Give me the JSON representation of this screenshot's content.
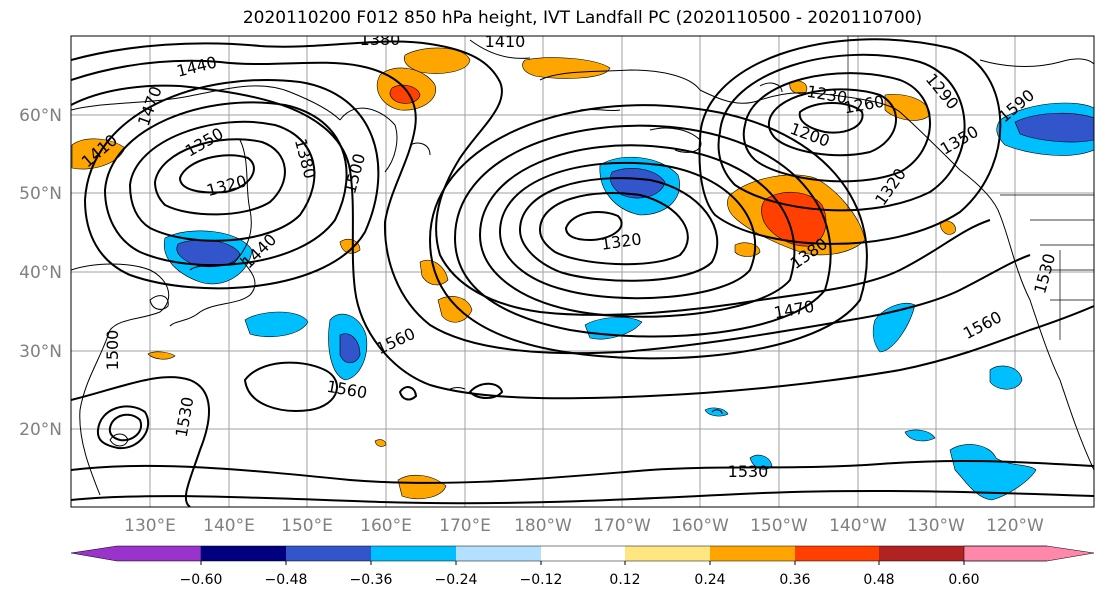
{
  "title": "2020110200 F012 850 hPa height, IVT Landfall PC (2020110500 - 2020110700)",
  "lat_labels": [
    "60°N",
    "50°N",
    "40°N",
    "30°N",
    "20°N"
  ],
  "lon_labels": [
    "130°E",
    "140°E",
    "150°E",
    "160°E",
    "170°E",
    "180°W",
    "170°W",
    "160°W",
    "150°W",
    "140°W",
    "130°W",
    "120°W"
  ],
  "contour_labels": [
    "1380",
    "1410",
    "1440",
    "1470",
    "1350",
    "1410",
    "1320",
    "1380",
    "1500",
    "1440",
    "1500",
    "1530",
    "1560",
    "1560",
    "1530",
    "1320",
    "1470",
    "1380",
    "1560",
    "1530",
    "1590",
    "1320",
    "1350",
    "1200",
    "1230",
    "1260",
    "1290"
  ],
  "colorbar": {
    "colors": [
      "#9933cc",
      "#000080",
      "#3355cc",
      "#00bfff",
      "#b3e0ff",
      "#ffffff",
      "#ffe680",
      "#ffa500",
      "#ff4000",
      "#b22222",
      "#ff88aa"
    ],
    "tick_labels": [
      "−0.60",
      "−0.48",
      "−0.36",
      "−0.24",
      "−0.12",
      "0.12",
      "0.24",
      "0.36",
      "0.48",
      "0.60"
    ]
  }
}
